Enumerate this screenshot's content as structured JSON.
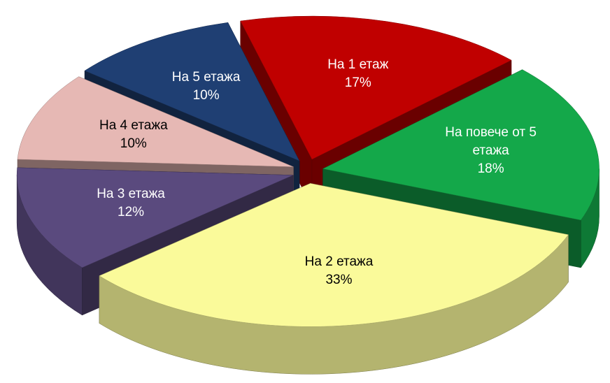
{
  "chart_data": {
    "type": "pie",
    "categories": [
      "На 1 етаж",
      "На повече от 5 етажа",
      "На 2 етажа",
      "На 3 етажа",
      "На 4 етажа",
      "На 5 етажа"
    ],
    "values": [
      17,
      18,
      33,
      12,
      10,
      10
    ],
    "value_labels": [
      "17%",
      "18%",
      "33%",
      "12%",
      "10%",
      "10%"
    ],
    "colors": [
      "#c00000",
      "#14a84a",
      "#fafa9a",
      "#5a4a7e",
      "#e6b8b4",
      "#1f3f73"
    ]
  }
}
